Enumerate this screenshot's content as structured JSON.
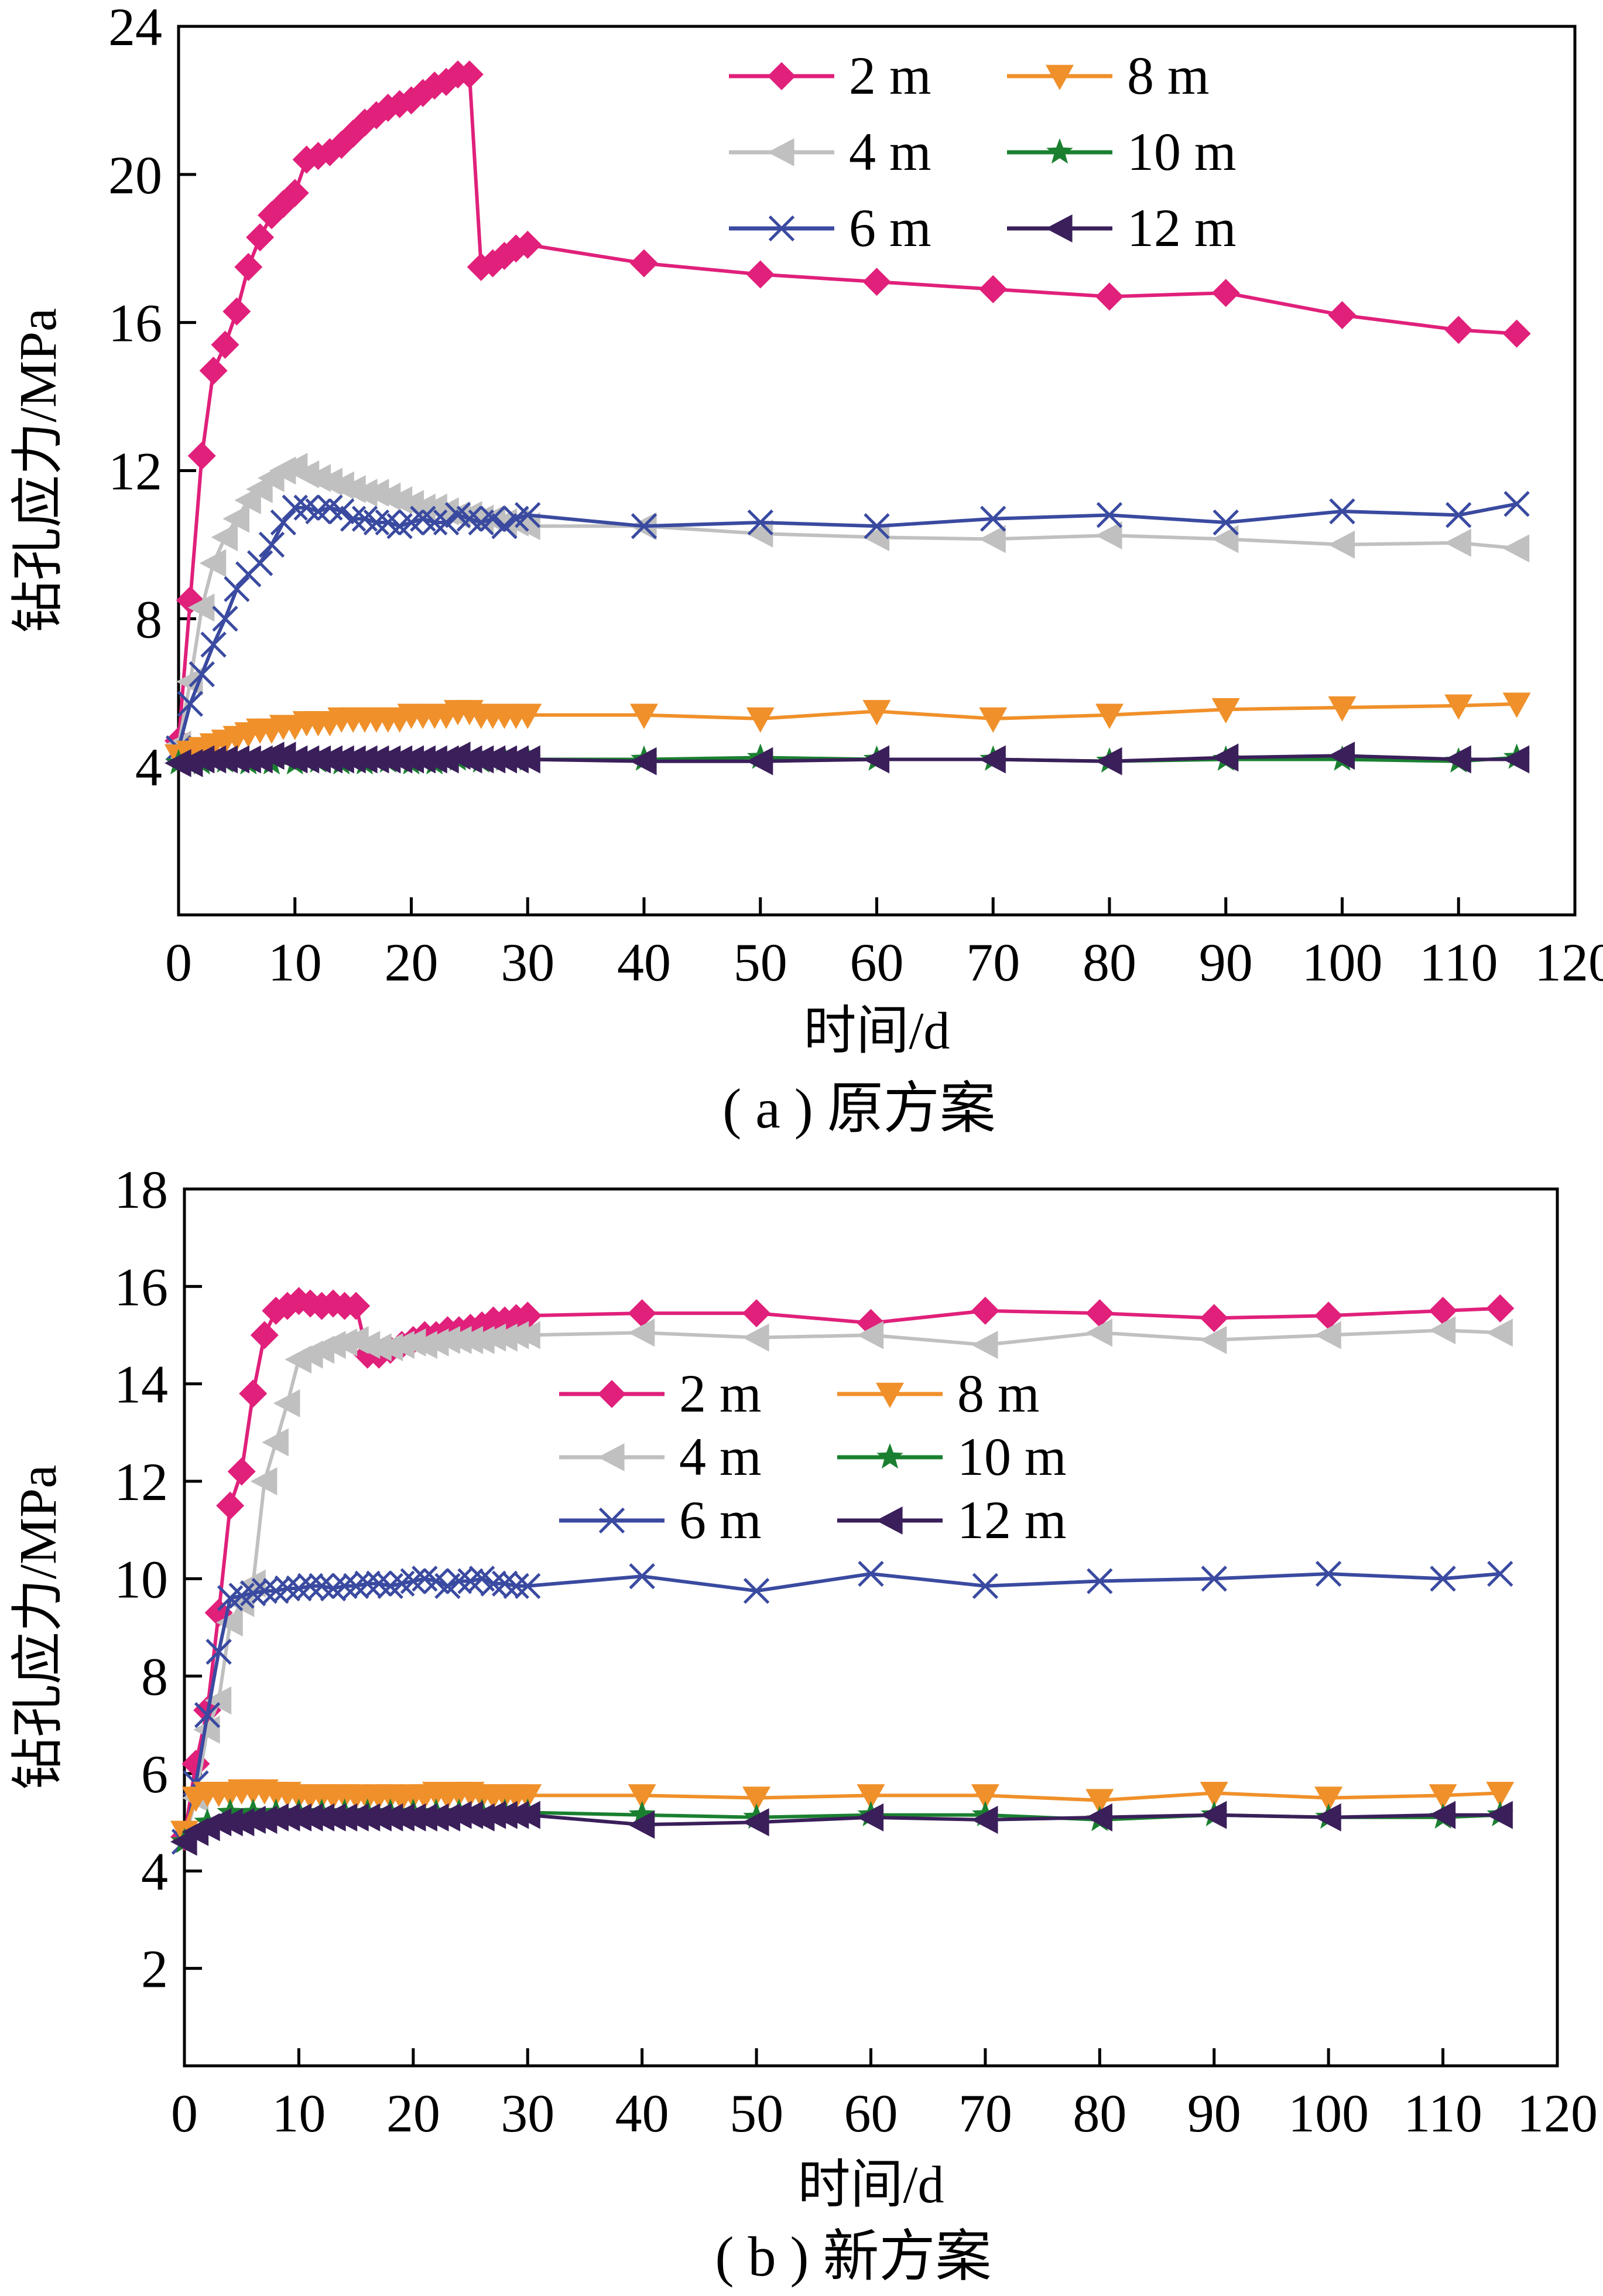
{
  "chart_data": [
    {
      "type": "line",
      "caption": "( a ) 原方案",
      "xlabel": "时间/d",
      "ylabel": "钻孔应力/MPa",
      "xlim": [
        0,
        120
      ],
      "ylim": [
        0,
        24
      ],
      "x_ticks": [
        0,
        10,
        20,
        30,
        40,
        50,
        60,
        70,
        80,
        90,
        100,
        110,
        120
      ],
      "y_ticks": [
        4,
        8,
        12,
        16,
        20,
        24
      ],
      "grid": false,
      "legend_position": "top-right",
      "series": [
        {
          "name": "2 m",
          "color": "#e0207a",
          "marker": "diamond",
          "x": [
            0,
            1,
            2,
            3,
            4,
            5,
            6,
            7,
            8,
            9,
            10,
            11,
            12,
            13,
            14,
            15,
            16,
            17,
            18,
            19,
            20,
            21,
            22,
            23,
            24,
            25,
            26,
            27,
            28,
            29,
            30,
            40,
            50,
            60,
            70,
            80,
            90,
            100,
            110,
            115
          ],
          "y": [
            4.7,
            8.5,
            12.4,
            14.7,
            15.4,
            16.3,
            17.5,
            18.3,
            18.9,
            19.2,
            19.5,
            20.4,
            20.5,
            20.6,
            20.8,
            21.1,
            21.4,
            21.6,
            21.8,
            21.9,
            22.0,
            22.2,
            22.4,
            22.5,
            22.7,
            22.7,
            17.5,
            17.6,
            17.8,
            18.0,
            18.1,
            17.6,
            17.3,
            17.1,
            16.9,
            16.7,
            16.8,
            16.2,
            15.8,
            15.7
          ]
        },
        {
          "name": "4 m",
          "color": "#c0c0c0",
          "marker": "triangle-left",
          "x": [
            0,
            1,
            2,
            3,
            4,
            5,
            6,
            7,
            8,
            9,
            10,
            11,
            12,
            13,
            14,
            15,
            16,
            17,
            18,
            19,
            20,
            21,
            22,
            23,
            24,
            25,
            26,
            27,
            28,
            29,
            30,
            40,
            50,
            60,
            70,
            80,
            90,
            100,
            110,
            115
          ],
          "y": [
            4.6,
            6.3,
            8.3,
            9.5,
            10.2,
            10.7,
            11.2,
            11.5,
            11.8,
            12.0,
            12.1,
            11.9,
            11.8,
            11.7,
            11.6,
            11.5,
            11.4,
            11.4,
            11.3,
            11.2,
            11.1,
            11.0,
            11.0,
            10.9,
            10.8,
            10.8,
            10.7,
            10.7,
            10.6,
            10.6,
            10.5,
            10.5,
            10.3,
            10.2,
            10.15,
            10.25,
            10.15,
            10.0,
            10.05,
            9.9
          ]
        },
        {
          "name": "6 m",
          "color": "#3a4aa0",
          "marker": "cross",
          "x": [
            0,
            1,
            2,
            3,
            4,
            5,
            6,
            7,
            8,
            9,
            10,
            11,
            12,
            13,
            14,
            15,
            16,
            17,
            18,
            19,
            20,
            21,
            22,
            23,
            24,
            25,
            26,
            27,
            28,
            29,
            30,
            40,
            50,
            60,
            70,
            80,
            90,
            100,
            110,
            115
          ],
          "y": [
            4.5,
            5.7,
            6.5,
            7.3,
            8.0,
            8.8,
            9.2,
            9.5,
            10.0,
            10.6,
            11.0,
            11.0,
            10.9,
            11.0,
            10.9,
            10.7,
            10.7,
            10.6,
            10.6,
            10.5,
            10.6,
            10.7,
            10.6,
            10.6,
            10.8,
            10.7,
            10.6,
            10.7,
            10.5,
            10.7,
            10.8,
            10.5,
            10.6,
            10.5,
            10.7,
            10.8,
            10.6,
            10.9,
            10.8,
            11.1
          ]
        },
        {
          "name": "8 m",
          "color": "#f0902a",
          "marker": "triangle-down",
          "x": [
            0,
            1,
            2,
            3,
            4,
            5,
            6,
            7,
            8,
            9,
            10,
            11,
            12,
            13,
            14,
            15,
            16,
            17,
            18,
            19,
            20,
            21,
            22,
            23,
            24,
            25,
            26,
            27,
            28,
            29,
            30,
            40,
            50,
            60,
            70,
            80,
            90,
            100,
            110,
            115
          ],
          "y": [
            4.3,
            4.4,
            4.5,
            4.6,
            4.7,
            4.8,
            4.9,
            5.0,
            5.0,
            5.1,
            5.1,
            5.2,
            5.2,
            5.2,
            5.3,
            5.3,
            5.3,
            5.3,
            5.3,
            5.3,
            5.4,
            5.4,
            5.4,
            5.4,
            5.5,
            5.5,
            5.4,
            5.4,
            5.4,
            5.4,
            5.4,
            5.4,
            5.3,
            5.5,
            5.3,
            5.4,
            5.55,
            5.6,
            5.65,
            5.7
          ]
        },
        {
          "name": "10 m",
          "color": "#1a8030",
          "marker": "star",
          "x": [
            0,
            2,
            4,
            6,
            8,
            10,
            12,
            14,
            16,
            18,
            20,
            22,
            24,
            26,
            28,
            30,
            40,
            50,
            60,
            70,
            80,
            90,
            100,
            110,
            115
          ],
          "y": [
            4.1,
            4.1,
            4.15,
            4.1,
            4.1,
            4.1,
            4.15,
            4.1,
            4.1,
            4.15,
            4.1,
            4.1,
            4.2,
            4.15,
            4.2,
            4.2,
            4.2,
            4.25,
            4.2,
            4.2,
            4.15,
            4.2,
            4.2,
            4.15,
            4.25
          ]
        },
        {
          "name": "12 m",
          "color": "#3a1f5a",
          "marker": "triangle-left",
          "x": [
            0,
            1,
            2,
            3,
            4,
            5,
            6,
            7,
            8,
            9,
            10,
            11,
            12,
            13,
            14,
            15,
            16,
            17,
            18,
            19,
            20,
            21,
            22,
            23,
            24,
            25,
            26,
            27,
            28,
            29,
            30,
            40,
            50,
            60,
            70,
            80,
            90,
            100,
            110,
            115
          ],
          "y": [
            4.1,
            4.1,
            4.2,
            4.2,
            4.2,
            4.2,
            4.2,
            4.2,
            4.3,
            4.3,
            4.2,
            4.2,
            4.2,
            4.2,
            4.2,
            4.2,
            4.2,
            4.2,
            4.2,
            4.2,
            4.2,
            4.2,
            4.2,
            4.2,
            4.3,
            4.2,
            4.2,
            4.2,
            4.2,
            4.2,
            4.2,
            4.15,
            4.15,
            4.2,
            4.2,
            4.15,
            4.25,
            4.3,
            4.2,
            4.2
          ]
        }
      ]
    },
    {
      "type": "line",
      "caption": "( b ) 新方案",
      "xlabel": "时间/d",
      "ylabel": "钻孔应力/MPa",
      "xlim": [
        0,
        120
      ],
      "ylim": [
        0,
        18
      ],
      "x_ticks": [
        0,
        10,
        20,
        30,
        40,
        50,
        60,
        70,
        80,
        90,
        100,
        110,
        120
      ],
      "y_ticks": [
        2,
        4,
        6,
        8,
        10,
        12,
        14,
        16,
        18
      ],
      "grid": false,
      "legend_position": "center-right",
      "series": [
        {
          "name": "2 m",
          "color": "#e0207a",
          "marker": "diamond",
          "x": [
            0,
            1,
            2,
            3,
            4,
            5,
            6,
            7,
            8,
            9,
            10,
            11,
            12,
            13,
            14,
            15,
            16,
            17,
            18,
            19,
            20,
            21,
            22,
            23,
            24,
            25,
            26,
            27,
            28,
            29,
            30,
            40,
            50,
            60,
            70,
            80,
            90,
            100,
            110,
            115
          ],
          "y": [
            4.7,
            6.2,
            7.3,
            9.3,
            11.5,
            12.2,
            13.8,
            15.0,
            15.5,
            15.6,
            15.7,
            15.65,
            15.6,
            15.65,
            15.6,
            15.6,
            14.6,
            14.6,
            14.7,
            14.8,
            14.9,
            15.0,
            15.0,
            15.1,
            15.1,
            15.15,
            15.2,
            15.3,
            15.3,
            15.35,
            15.4,
            15.45,
            15.45,
            15.25,
            15.5,
            15.45,
            15.35,
            15.4,
            15.5,
            15.55
          ]
        },
        {
          "name": "4 m",
          "color": "#c0c0c0",
          "marker": "triangle-left",
          "x": [
            0,
            1,
            2,
            3,
            4,
            5,
            6,
            7,
            8,
            9,
            10,
            11,
            12,
            13,
            14,
            15,
            16,
            17,
            18,
            19,
            20,
            21,
            22,
            23,
            24,
            25,
            26,
            27,
            28,
            29,
            30,
            40,
            50,
            60,
            70,
            80,
            90,
            100,
            110,
            115
          ],
          "y": [
            4.6,
            5.5,
            6.9,
            7.5,
            9.1,
            9.5,
            9.9,
            12.0,
            12.8,
            13.6,
            14.5,
            14.6,
            14.7,
            14.8,
            14.85,
            14.9,
            14.8,
            14.75,
            14.75,
            14.8,
            14.85,
            14.8,
            14.85,
            14.9,
            14.9,
            14.9,
            14.9,
            14.95,
            14.95,
            15.0,
            15.0,
            15.05,
            14.95,
            15.0,
            14.8,
            15.05,
            14.9,
            15.0,
            15.1,
            15.05
          ]
        },
        {
          "name": "6 m",
          "color": "#3a4aa0",
          "marker": "cross",
          "x": [
            0,
            1,
            2,
            3,
            4,
            5,
            6,
            7,
            8,
            9,
            10,
            11,
            12,
            13,
            14,
            15,
            16,
            17,
            18,
            19,
            20,
            21,
            22,
            23,
            24,
            25,
            26,
            27,
            28,
            29,
            30,
            40,
            50,
            60,
            70,
            80,
            90,
            100,
            110,
            115
          ],
          "y": [
            4.6,
            5.8,
            7.2,
            8.5,
            9.6,
            9.65,
            9.7,
            9.75,
            9.75,
            9.8,
            9.8,
            9.85,
            9.85,
            9.8,
            9.85,
            9.85,
            9.9,
            9.9,
            9.85,
            9.9,
            9.95,
            10.0,
            9.95,
            9.85,
            9.95,
            9.95,
            10.0,
            9.9,
            9.9,
            9.85,
            9.85,
            10.05,
            9.75,
            10.1,
            9.85,
            9.95,
            10.0,
            10.1,
            10.0,
            10.1
          ]
        },
        {
          "name": "8 m",
          "color": "#f0902a",
          "marker": "triangle-down",
          "x": [
            0,
            1,
            2,
            3,
            4,
            5,
            6,
            7,
            8,
            9,
            10,
            11,
            12,
            13,
            14,
            15,
            16,
            17,
            18,
            19,
            20,
            21,
            22,
            23,
            24,
            25,
            26,
            27,
            28,
            29,
            30,
            40,
            50,
            60,
            70,
            80,
            90,
            100,
            110,
            115
          ],
          "y": [
            4.8,
            5.5,
            5.6,
            5.6,
            5.6,
            5.65,
            5.65,
            5.65,
            5.6,
            5.6,
            5.55,
            5.55,
            5.55,
            5.55,
            5.55,
            5.55,
            5.5,
            5.55,
            5.55,
            5.5,
            5.55,
            5.55,
            5.6,
            5.55,
            5.6,
            5.6,
            5.55,
            5.55,
            5.55,
            5.55,
            5.55,
            5.55,
            5.5,
            5.55,
            5.55,
            5.45,
            5.6,
            5.5,
            5.55,
            5.6
          ]
        },
        {
          "name": "10 m",
          "color": "#1a8030",
          "marker": "star",
          "x": [
            0,
            2,
            4,
            6,
            8,
            10,
            12,
            14,
            16,
            18,
            20,
            22,
            24,
            26,
            28,
            30,
            40,
            50,
            60,
            70,
            80,
            90,
            100,
            110,
            115
          ],
          "y": [
            4.6,
            5.0,
            5.2,
            5.2,
            5.2,
            5.2,
            5.2,
            5.2,
            5.2,
            5.2,
            5.2,
            5.2,
            5.2,
            5.2,
            5.2,
            5.2,
            5.15,
            5.1,
            5.15,
            5.15,
            5.05,
            5.15,
            5.1,
            5.1,
            5.15
          ]
        },
        {
          "name": "12 m",
          "color": "#3a1f5a",
          "marker": "triangle-left",
          "x": [
            0,
            1,
            2,
            3,
            4,
            5,
            6,
            7,
            8,
            9,
            10,
            11,
            12,
            13,
            14,
            15,
            16,
            17,
            18,
            19,
            20,
            21,
            22,
            23,
            24,
            25,
            26,
            27,
            28,
            29,
            30,
            40,
            50,
            60,
            70,
            80,
            90,
            100,
            110,
            115
          ],
          "y": [
            4.6,
            4.8,
            4.9,
            5.0,
            5.0,
            5.0,
            5.05,
            5.05,
            5.1,
            5.1,
            5.1,
            5.1,
            5.1,
            5.1,
            5.1,
            5.1,
            5.1,
            5.1,
            5.1,
            5.1,
            5.1,
            5.1,
            5.1,
            5.1,
            5.15,
            5.15,
            5.1,
            5.15,
            5.15,
            5.15,
            5.15,
            4.95,
            5.0,
            5.1,
            5.05,
            5.1,
            5.15,
            5.1,
            5.15,
            5.15
          ]
        }
      ]
    }
  ]
}
